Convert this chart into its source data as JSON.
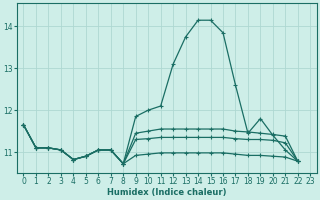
{
  "xlabel": "Humidex (Indice chaleur)",
  "background_color": "#ceeee8",
  "grid_color": "#aed8d2",
  "line_color": "#1a6e64",
  "xlim": [
    -0.5,
    23.5
  ],
  "ylim": [
    10.5,
    14.55
  ],
  "yticks": [
    11,
    12,
    13,
    14
  ],
  "xticks": [
    0,
    1,
    2,
    3,
    4,
    5,
    6,
    7,
    8,
    9,
    10,
    11,
    12,
    13,
    14,
    15,
    16,
    17,
    18,
    19,
    20,
    21,
    22,
    23
  ],
  "series": [
    {
      "x": [
        0,
        1,
        2,
        3,
        4,
        5,
        6,
        7,
        8,
        9,
        10,
        11,
        12,
        13,
        14,
        15,
        16,
        17,
        18,
        19,
        20,
        21,
        22
      ],
      "y": [
        11.65,
        11.1,
        11.1,
        11.05,
        10.82,
        10.9,
        11.05,
        11.05,
        10.72,
        11.85,
        12.0,
        12.1,
        13.1,
        13.75,
        14.15,
        14.15,
        13.85,
        12.6,
        11.45,
        11.8,
        11.4,
        11.05,
        10.78
      ],
      "marker": "+"
    },
    {
      "x": [
        0,
        1,
        2,
        3,
        4,
        5,
        6,
        7,
        8,
        9,
        10,
        11,
        12,
        13,
        14,
        15,
        16,
        17,
        18,
        19,
        20,
        21,
        22
      ],
      "y": [
        11.65,
        11.1,
        11.1,
        11.05,
        10.82,
        10.9,
        11.05,
        11.05,
        10.72,
        11.45,
        11.5,
        11.55,
        11.55,
        11.55,
        11.55,
        11.55,
        11.55,
        11.5,
        11.48,
        11.45,
        11.42,
        11.38,
        10.78
      ],
      "marker": "+"
    },
    {
      "x": [
        0,
        1,
        2,
        3,
        4,
        5,
        6,
        7,
        8,
        9,
        10,
        11,
        12,
        13,
        14,
        15,
        16,
        17,
        18,
        19,
        20,
        21,
        22
      ],
      "y": [
        11.65,
        11.1,
        11.1,
        11.05,
        10.82,
        10.9,
        11.05,
        11.05,
        10.72,
        11.3,
        11.32,
        11.35,
        11.35,
        11.35,
        11.35,
        11.35,
        11.35,
        11.32,
        11.3,
        11.3,
        11.28,
        11.22,
        10.78
      ],
      "marker": "+"
    },
    {
      "x": [
        0,
        1,
        2,
        3,
        4,
        5,
        6,
        7,
        8,
        9,
        10,
        11,
        12,
        13,
        14,
        15,
        16,
        17,
        18,
        19,
        20,
        21,
        22
      ],
      "y": [
        11.65,
        11.1,
        11.1,
        11.05,
        10.82,
        10.9,
        11.05,
        11.05,
        10.72,
        10.92,
        10.95,
        10.98,
        10.98,
        10.98,
        10.98,
        10.98,
        10.98,
        10.95,
        10.92,
        10.92,
        10.9,
        10.88,
        10.78
      ],
      "marker": "+"
    }
  ]
}
